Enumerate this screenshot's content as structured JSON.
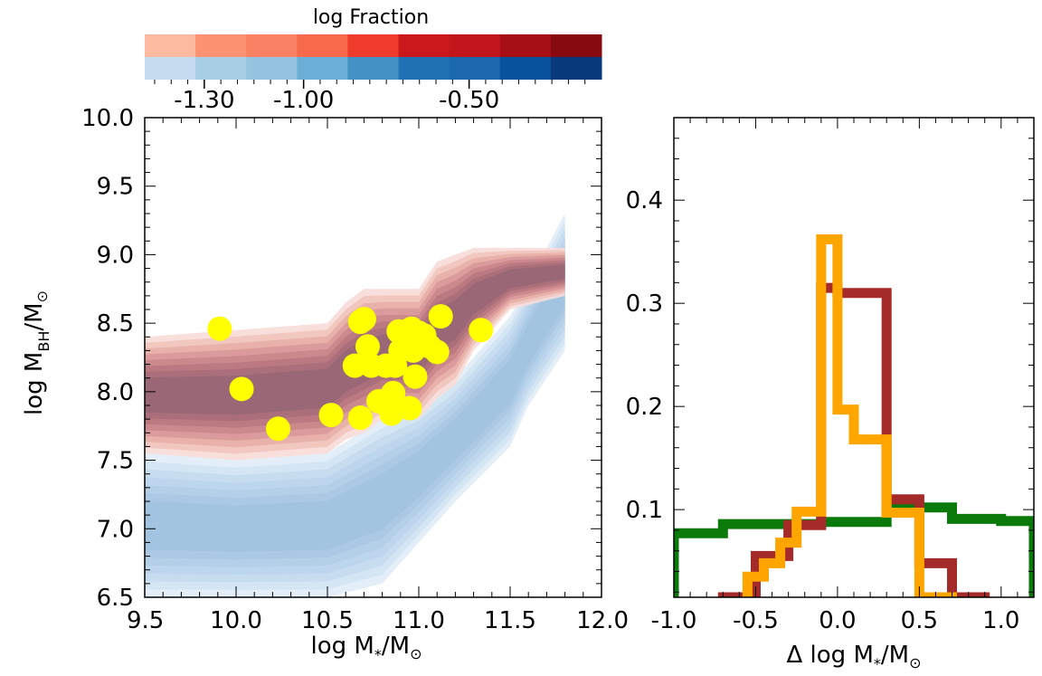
{
  "chart_data": [
    {
      "type": "colorbar",
      "title": "log Fraction",
      "tick_labels": [
        "-1.30",
        "-1.00",
        "-0.50"
      ],
      "tick_values": [
        -1.3,
        -1.0,
        -0.5
      ],
      "range": [
        -1.48,
        -0.1
      ],
      "red_colors": [
        "#fcbba1",
        "#fc9272",
        "#fb8164",
        "#f6694a",
        "#ee3b2b",
        "#cb181d",
        "#c0161c",
        "#a50f15",
        "#860a0f"
      ],
      "blue_colors": [
        "#c6dbef",
        "#a8cee5",
        "#94c4df",
        "#6baed6",
        "#4292c6",
        "#2171b5",
        "#1c68ae",
        "#08519c",
        "#08397a"
      ]
    },
    {
      "type": "scatter",
      "xlabel": "log M",
      "xlabel_sub": "*",
      "xlabel_suffix": "/M",
      "ylabel": "log M",
      "ylabel_sub": "BH",
      "ylabel_suffix": "/M",
      "xlim": [
        9.5,
        12.0
      ],
      "ylim": [
        6.5,
        10.0
      ],
      "x_tick_labels": [
        "9.5",
        "10.0",
        "10.5",
        "11.0",
        "11.5",
        "12.0"
      ],
      "y_tick_labels": [
        "6.5",
        "7.0",
        "7.5",
        "8.0",
        "8.5",
        "9.0",
        "9.5",
        "10.0"
      ],
      "marker_color": "#ffff00",
      "points": [
        {
          "x": 9.91,
          "y": 8.46
        },
        {
          "x": 10.03,
          "y": 8.02
        },
        {
          "x": 10.23,
          "y": 7.73
        },
        {
          "x": 10.52,
          "y": 7.83
        },
        {
          "x": 10.65,
          "y": 8.19
        },
        {
          "x": 10.68,
          "y": 8.51
        },
        {
          "x": 10.68,
          "y": 7.81
        },
        {
          "x": 10.7,
          "y": 8.53
        },
        {
          "x": 10.72,
          "y": 8.33
        },
        {
          "x": 10.74,
          "y": 8.19
        },
        {
          "x": 10.78,
          "y": 7.93
        },
        {
          "x": 10.82,
          "y": 8.19
        },
        {
          "x": 10.85,
          "y": 7.84
        },
        {
          "x": 10.86,
          "y": 7.99
        },
        {
          "x": 10.87,
          "y": 8.19
        },
        {
          "x": 10.89,
          "y": 8.44
        },
        {
          "x": 10.9,
          "y": 8.3
        },
        {
          "x": 10.93,
          "y": 8.44
        },
        {
          "x": 10.95,
          "y": 7.88
        },
        {
          "x": 10.96,
          "y": 8.46
        },
        {
          "x": 10.97,
          "y": 8.3
        },
        {
          "x": 10.98,
          "y": 8.11
        },
        {
          "x": 11.0,
          "y": 8.43
        },
        {
          "x": 11.03,
          "y": 8.41
        },
        {
          "x": 11.06,
          "y": 8.33
        },
        {
          "x": 11.1,
          "y": 8.29
        },
        {
          "x": 11.12,
          "y": 8.55
        },
        {
          "x": 11.34,
          "y": 8.45
        }
      ],
      "red_envelope": {
        "x": [
          9.5,
          10.0,
          10.5,
          10.6,
          10.7,
          10.8,
          11.0,
          11.1,
          11.2,
          11.3,
          11.5,
          11.8
        ],
        "upper": [
          8.4,
          8.45,
          8.5,
          8.65,
          8.75,
          8.75,
          8.75,
          8.95,
          9.0,
          9.05,
          9.05,
          9.05
        ],
        "lower": [
          7.55,
          7.5,
          7.55,
          7.65,
          7.7,
          7.8,
          7.8,
          7.95,
          8.05,
          8.3,
          8.6,
          8.7
        ]
      },
      "blue_envelope": {
        "x": [
          9.5,
          10.0,
          10.5,
          10.8,
          11.0,
          11.2,
          11.5,
          11.6,
          11.8
        ],
        "upper": [
          7.55,
          7.5,
          7.55,
          7.8,
          7.9,
          8.1,
          8.55,
          8.8,
          9.3
        ],
        "lower": [
          6.5,
          6.5,
          6.5,
          6.6,
          6.9,
          7.2,
          7.6,
          7.9,
          8.3
        ]
      }
    },
    {
      "type": "histogram",
      "xlabel": "Δ log M",
      "xlabel_sub": "*",
      "xlabel_suffix": "/M",
      "xlim": [
        -1.0,
        1.2
      ],
      "ylim": [
        0.015,
        0.48
      ],
      "x_tick_labels": [
        "-1.0",
        "-0.5",
        "0.0",
        "0.5",
        "1.0"
      ],
      "x_tick_values": [
        -1.0,
        -0.5,
        0.0,
        0.5,
        1.0
      ],
      "y_tick_labels": [
        "0.1",
        "0.2",
        "0.3",
        "0.4"
      ],
      "y_tick_values": [
        0.1,
        0.2,
        0.3,
        0.4
      ],
      "series": [
        {
          "name": "green",
          "color": "#0a7a0a",
          "edges": [
            -1.0,
            -0.7,
            -0.1,
            0.3,
            0.5,
            0.7,
            1.0,
            1.2
          ],
          "values": [
            0.077,
            0.086,
            0.088,
            0.104,
            0.102,
            0.091,
            0.089
          ]
        },
        {
          "name": "brown",
          "color": "#a52a2a",
          "edges": [
            -0.7,
            -0.5,
            -0.3,
            -0.1,
            0.0,
            0.3,
            0.5,
            0.7,
            0.9
          ],
          "values": [
            0.015,
            0.055,
            0.085,
            0.315,
            0.31,
            0.11,
            0.048,
            0.015
          ]
        },
        {
          "name": "orange",
          "color": "#ffa500",
          "edges": [
            -0.55,
            -0.45,
            -0.35,
            -0.25,
            -0.1,
            0.0,
            0.1,
            0.3,
            0.5,
            0.7
          ],
          "values": [
            0.035,
            0.048,
            0.068,
            0.098,
            0.362,
            0.197,
            0.168,
            0.097,
            0.015
          ]
        }
      ]
    }
  ]
}
